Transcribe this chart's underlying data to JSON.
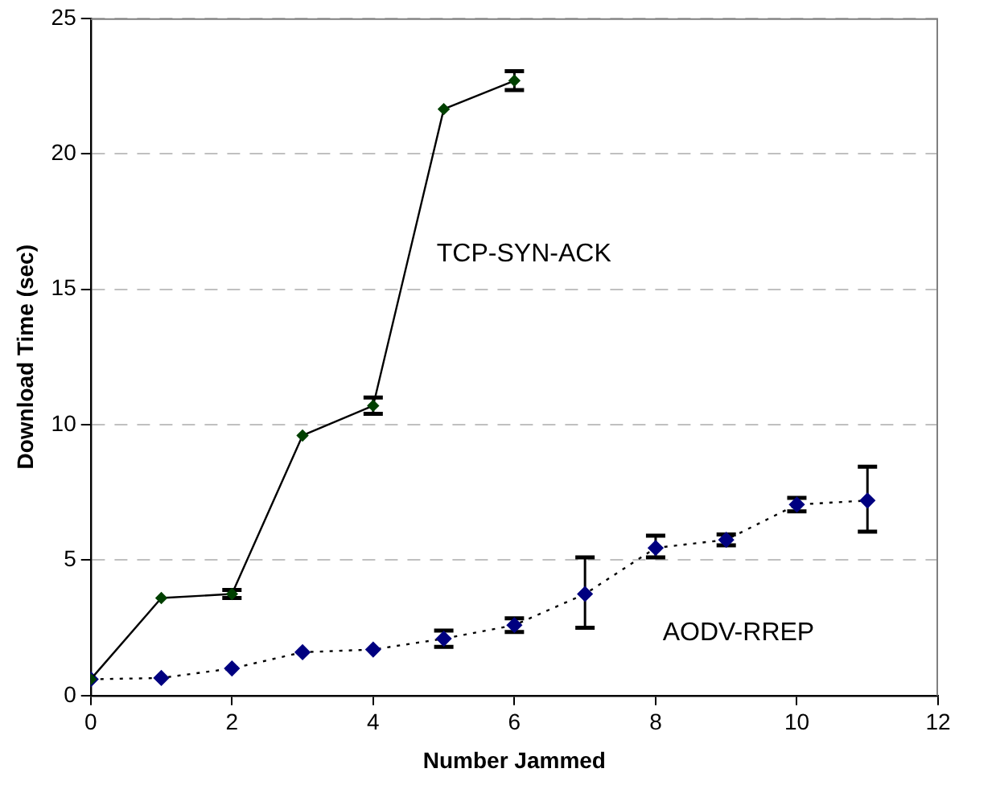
{
  "chart_data": {
    "type": "line",
    "xlabel": "Number Jammed",
    "ylabel": "Download Time (sec)",
    "x": [
      0,
      1,
      2,
      3,
      4,
      5,
      6,
      7,
      8,
      9,
      10,
      11
    ],
    "xlim": [
      0,
      12
    ],
    "xticks": [
      0,
      2,
      4,
      6,
      8,
      10,
      12
    ],
    "ylim": [
      0,
      25
    ],
    "yticks": [
      0,
      5,
      10,
      15,
      20,
      25
    ],
    "grid": "y",
    "legend": false,
    "marker": "diamond",
    "series": [
      {
        "name": "TCP-SYN-ACK",
        "color": "#004000",
        "line_style": "solid",
        "values": [
          0.6,
          3.6,
          3.75,
          9.6,
          10.7,
          21.65,
          22.7,
          null,
          null,
          null,
          null,
          null
        ],
        "errors": [
          null,
          null,
          0.15,
          null,
          0.3,
          null,
          0.35,
          null,
          null,
          null,
          null,
          null
        ]
      },
      {
        "name": "AODV-RREP",
        "color": "#000080",
        "line_style": "dotted",
        "values": [
          0.6,
          0.65,
          1.0,
          1.6,
          1.7,
          2.1,
          2.6,
          3.75,
          5.45,
          5.75,
          7.05,
          7.2
        ],
        "errors": [
          null,
          null,
          null,
          null,
          null,
          0.3,
          0.25,
          [
            2.5,
            5.1
          ],
          [
            5.1,
            5.9
          ],
          0.2,
          0.25,
          [
            6.05,
            8.45
          ]
        ]
      }
    ]
  }
}
